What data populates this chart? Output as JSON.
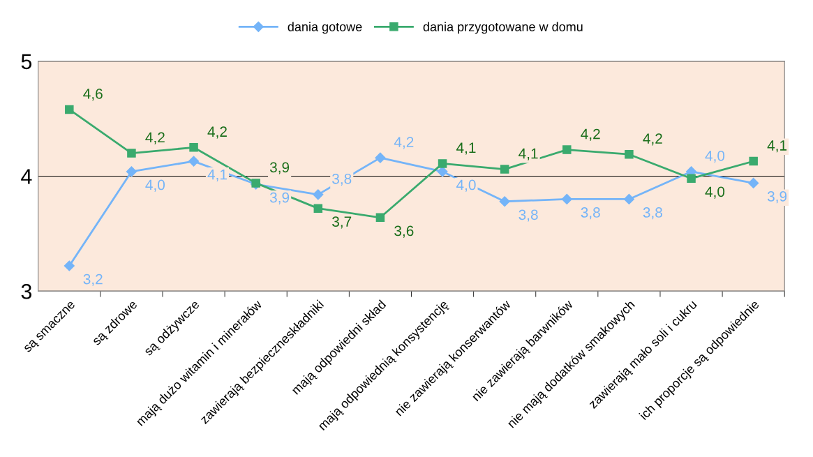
{
  "chart_data": {
    "type": "line",
    "categories": [
      "są smaczne",
      "są zdrowe",
      "są odżywcze",
      "mają dużo witamin i minerałów",
      "zawierają bezpieczneskładniki",
      "mają odpowiedni skład",
      "mają odpowiednią konsystencję",
      "nie zawierają konserwantów",
      "nie zawierają barwników",
      "nie mają dodatków smakowych",
      "zawierają mało soli i cukru",
      "ich proporcje są odpowiednie"
    ],
    "series": [
      {
        "name": "dania gotowe",
        "color": "#74b4f8",
        "marker": "diamond",
        "values": [
          3.22,
          4.04,
          4.13,
          3.93,
          3.84,
          4.16,
          4.04,
          3.78,
          3.8,
          3.8,
          4.04,
          3.94
        ],
        "value_labels": [
          "3,2",
          "4,0",
          "4,1",
          "3,9",
          "3,8",
          "4,2",
          "4,0",
          "3,8",
          "3,8",
          "3,8",
          "4,0",
          "3,9"
        ]
      },
      {
        "name": "dania przygotowane w domu",
        "color": "#3aaa6e",
        "marker": "square",
        "values": [
          4.58,
          4.2,
          4.25,
          3.94,
          3.72,
          3.64,
          4.11,
          4.06,
          4.23,
          4.19,
          3.98,
          4.13
        ],
        "value_labels": [
          "4,6",
          "4,2",
          "4,2",
          "3,9",
          "3,7",
          "3,6",
          "4,1",
          "4,1",
          "4,2",
          "4,2",
          "4,0",
          "4,1"
        ]
      }
    ],
    "ylim": [
      3,
      5
    ],
    "yticks": [
      3,
      4,
      5
    ],
    "grid": "y",
    "legend": "top",
    "line_style": "solid"
  }
}
